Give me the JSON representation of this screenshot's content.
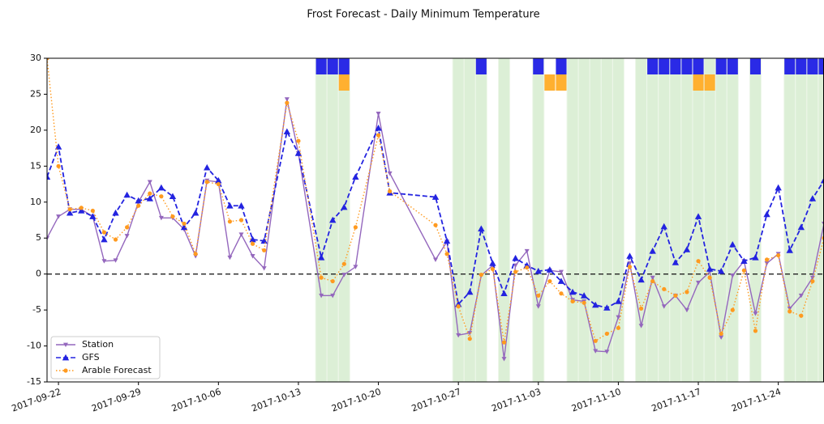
{
  "chart_data": {
    "type": "line",
    "title": "Frost Forecast - Daily Minimum Temperature",
    "x": [
      "2017-09-21",
      "2017-09-22",
      "2017-09-23",
      "2017-09-24",
      "2017-09-25",
      "2017-09-26",
      "2017-09-27",
      "2017-09-28",
      "2017-09-29",
      "2017-09-30",
      "2017-10-01",
      "2017-10-02",
      "2017-10-03",
      "2017-10-04",
      "2017-10-05",
      "2017-10-06",
      "2017-10-07",
      "2017-10-08",
      "2017-10-09",
      "2017-10-10",
      "2017-10-12",
      "2017-10-13",
      "2017-10-15",
      "2017-10-16",
      "2017-10-17",
      "2017-10-18",
      "2017-10-20",
      "2017-10-21",
      "2017-10-25",
      "2017-10-26",
      "2017-10-27",
      "2017-10-28",
      "2017-10-29",
      "2017-10-30",
      "2017-10-31",
      "2017-11-01",
      "2017-11-02",
      "2017-11-03",
      "2017-11-04",
      "2017-11-05",
      "2017-11-06",
      "2017-11-07",
      "2017-11-08",
      "2017-11-09",
      "2017-11-10",
      "2017-11-11",
      "2017-11-12",
      "2017-11-13",
      "2017-11-14",
      "2017-11-15",
      "2017-11-16",
      "2017-11-17",
      "2017-11-18",
      "2017-11-19",
      "2017-11-20",
      "2017-11-21",
      "2017-11-22",
      "2017-11-23",
      "2017-11-24",
      "2017-11-25",
      "2017-11-26",
      "2017-11-27",
      "2017-11-28"
    ],
    "series": [
      {
        "name": "Station",
        "color": "#9467bd",
        "marker": "triangle-down",
        "dash": "solid",
        "values": [
          5,
          8,
          9,
          9,
          8,
          1.8,
          1.9,
          5.3,
          10,
          12.8,
          7.8,
          7.8,
          6.2,
          2.5,
          13,
          12.8,
          2.3,
          5.5,
          2.5,
          0.8,
          24.3,
          16.8,
          -3,
          -3,
          -0.1,
          1,
          22.3,
          14,
          2,
          4.5,
          -8.5,
          -8.2,
          -0.2,
          1.2,
          -11.8,
          1.2,
          3.2,
          -4.5,
          0.5,
          0.3,
          -3.6,
          -3.8,
          -10.7,
          -10.8,
          -6,
          1.5,
          -7.2,
          -0.5,
          -4.5,
          -3,
          -5,
          -1.2,
          0.3,
          -8.8,
          -0.2,
          1.8,
          -5.5,
          1.5,
          2.8,
          -4.8,
          -3,
          -0.5,
          7
        ]
      },
      {
        "name": "GFS",
        "color": "#2323e0",
        "marker": "triangle-up",
        "dash": "dashed",
        "values": [
          13.5,
          17.7,
          8.5,
          8.8,
          8,
          4.8,
          8.5,
          11,
          10.2,
          10.5,
          12,
          10.8,
          6.5,
          8.5,
          14.8,
          13,
          9.5,
          9.5,
          4.8,
          4.6,
          19.8,
          16.8,
          2.3,
          7.5,
          9.3,
          13.5,
          20.3,
          11.3,
          10.7,
          4.6,
          -4.2,
          -2.5,
          6.3,
          1.5,
          -2.7,
          2.2,
          1.2,
          0.4,
          0.6,
          -1,
          -2.5,
          -3,
          -4.3,
          -4.7,
          -3.8,
          2.5,
          -0.8,
          3.2,
          6.6,
          1.6,
          3.4,
          8,
          0.7,
          0.4,
          4.1,
          1.8,
          2.3,
          8.3,
          12,
          3.3,
          6.5,
          10.5,
          13
        ]
      },
      {
        "name": "Arable Forecast",
        "color": "#ff9a1f",
        "marker": "circle",
        "dash": "dotted",
        "values": [
          30,
          15,
          9,
          9.2,
          8.8,
          5.8,
          4.8,
          6.5,
          9.5,
          11.2,
          10.8,
          8,
          7,
          2.8,
          12.8,
          12.5,
          7.3,
          7.5,
          4.2,
          3.3,
          23.8,
          18.5,
          -0.5,
          -1,
          1.4,
          6.5,
          19.3,
          11.5,
          6.8,
          2.8,
          -4.5,
          -9,
          -0.1,
          0.7,
          -9.5,
          0.3,
          0.9,
          -3,
          -1,
          -2.7,
          -3.8,
          -4,
          -9.3,
          -8.3,
          -7.5,
          1,
          -4.8,
          -1,
          -2.1,
          -3,
          -2.5,
          1.8,
          -0.5,
          -8.3,
          -5,
          0.5,
          -7.9,
          2,
          2.6,
          -5.2,
          -5.8,
          -1,
          5
        ]
      }
    ],
    "observed_frost_days": {
      "color": "#dcefd6",
      "dates": [
        "2017-10-15",
        "2017-10-16",
        "2017-10-17",
        "2017-10-27",
        "2017-10-28",
        "2017-10-29",
        "2017-10-31",
        "2017-11-03",
        "2017-11-06",
        "2017-11-07",
        "2017-11-08",
        "2017-11-09",
        "2017-11-10",
        "2017-11-12",
        "2017-11-13",
        "2017-11-14",
        "2017-11-15",
        "2017-11-16",
        "2017-11-17",
        "2017-11-18",
        "2017-11-19",
        "2017-11-20",
        "2017-11-22",
        "2017-11-25",
        "2017-11-26",
        "2017-11-27",
        "2017-11-28"
      ]
    },
    "gfs_frost_alerts": {
      "color": "#2a2ae6",
      "dates": [
        "2017-10-15",
        "2017-10-16",
        "2017-10-17",
        "2017-10-29",
        "2017-11-03",
        "2017-11-05",
        "2017-11-13",
        "2017-11-14",
        "2017-11-15",
        "2017-11-16",
        "2017-11-17",
        "2017-11-19",
        "2017-11-20",
        "2017-11-22",
        "2017-11-25",
        "2017-11-26",
        "2017-11-27",
        "2017-11-28"
      ]
    },
    "arable_frost_alerts": {
      "color": "#ffb030",
      "dates": [
        "2017-10-17",
        "2017-11-04",
        "2017-11-05",
        "2017-11-17",
        "2017-11-18"
      ]
    },
    "hline": 0,
    "xlim": [
      "2017-09-21",
      "2017-11-28"
    ],
    "xticks": [
      "2017-09-22",
      "2017-09-29",
      "2017-10-06",
      "2017-10-13",
      "2017-10-20",
      "2017-10-27",
      "2017-11-03",
      "2017-11-10",
      "2017-11-17",
      "2017-11-24"
    ],
    "ylim": [
      -15,
      30
    ],
    "yticks": [
      -15,
      -10,
      -5,
      0,
      5,
      10,
      15,
      20,
      25,
      30
    ],
    "legend": "lower left"
  }
}
